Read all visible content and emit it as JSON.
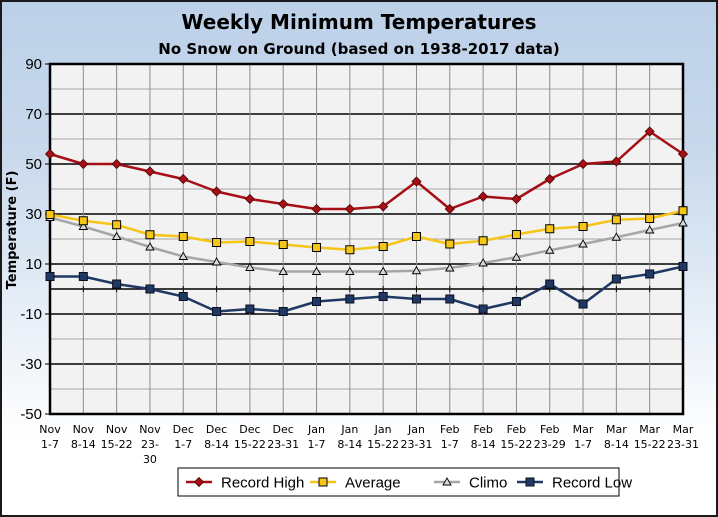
{
  "chart_data": {
    "type": "line",
    "title": "Weekly Minimum Temperatures",
    "subtitle": "No Snow on Ground (based on 1938-2017 data)",
    "xlabel": "",
    "ylabel": "Temperature (F)",
    "ylim": [
      -50,
      90
    ],
    "yticks": [
      "90",
      "70",
      "50",
      "30",
      "10",
      "-10",
      "-30",
      "-50"
    ],
    "ytick_values": [
      90,
      70,
      50,
      30,
      10,
      -10,
      -30,
      -50
    ],
    "grid": true,
    "legend_position": "bottom",
    "categories": [
      [
        "Nov",
        "1-7"
      ],
      [
        "Nov",
        "8-14"
      ],
      [
        "Nov",
        "15-22"
      ],
      [
        "Nov",
        "23-",
        "30"
      ],
      [
        "Dec",
        "1-7"
      ],
      [
        "Dec",
        "8-14"
      ],
      [
        "Dec",
        "15-22"
      ],
      [
        "Dec",
        "23-31"
      ],
      [
        "Jan",
        "1-7"
      ],
      [
        "Jan",
        "8-14"
      ],
      [
        "Jan",
        "15-22"
      ],
      [
        "Jan",
        "23-31"
      ],
      [
        "Feb",
        "1-7"
      ],
      [
        "Feb",
        "8-14"
      ],
      [
        "Feb",
        "15-22"
      ],
      [
        "Feb",
        "23-29"
      ],
      [
        "Mar",
        "1-7"
      ],
      [
        "Mar",
        "8-14"
      ],
      [
        "Mar",
        "15-22"
      ],
      [
        "Mar",
        "23-31"
      ]
    ],
    "series": [
      {
        "name": "Record High",
        "color": "#a50f15",
        "marker": "diamond",
        "values": [
          54,
          50,
          50,
          47,
          44,
          39,
          36,
          34,
          32,
          32,
          33,
          43,
          32,
          37,
          36,
          44,
          50,
          51,
          63,
          54
        ]
      },
      {
        "name": "Average",
        "color": "#f5c518",
        "marker": "square-open",
        "values": [
          29.8,
          27.3,
          25.7,
          21.7,
          21.0,
          18.6,
          19.0,
          17.8,
          16.6,
          15.7,
          17.0,
          21.0,
          18.0,
          19.3,
          21.8,
          24.1,
          25.0,
          27.7,
          28.2,
          31.3
        ]
      },
      {
        "name": "Climo",
        "color": "#a6a6a6",
        "marker": "triangle",
        "values": [
          28.6,
          25.0,
          21.0,
          16.8,
          13.0,
          10.8,
          8.6,
          7.0,
          7.0,
          7.0,
          7.0,
          7.3,
          8.4,
          10.4,
          12.7,
          15.5,
          18.0,
          20.7,
          23.6,
          26.4
        ]
      },
      {
        "name": "Record Low",
        "color": "#1f3864",
        "marker": "square",
        "values": [
          5,
          5,
          2,
          0,
          -3,
          -9,
          -8,
          -9,
          -5,
          -4,
          -3,
          -4,
          -4,
          -8,
          -5,
          2,
          -6,
          4,
          6,
          9
        ]
      }
    ]
  }
}
